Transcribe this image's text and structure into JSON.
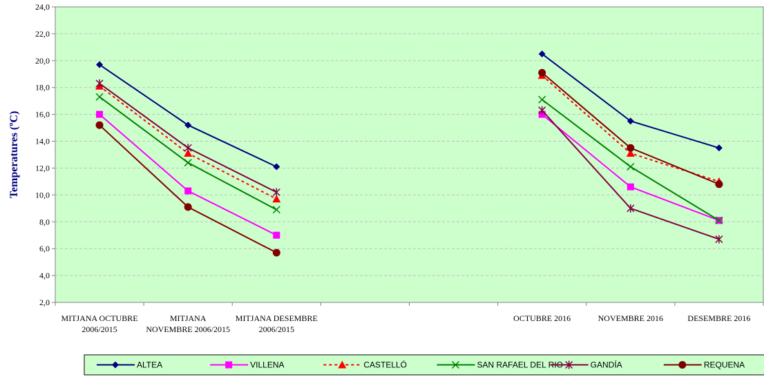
{
  "chart_data": {
    "type": "line",
    "ylabel": "Temperatures (ºC)",
    "ylim": [
      2,
      24
    ],
    "ytick_step": 2,
    "grid": true,
    "legend_position": "bottom",
    "categories": [
      [
        "MITJANA OCTUBRE",
        "2006/2015"
      ],
      [
        "MITJANA",
        "NOVEMBRE 2006/2015"
      ],
      [
        "MITJANA DESEMBRE",
        "2006/2015"
      ],
      [
        "",
        ""
      ],
      [
        "",
        ""
      ],
      [
        "OCTUBRE 2016",
        ""
      ],
      [
        "NOVEMBRE 2016",
        ""
      ],
      [
        "DESEMBRE 2016",
        ""
      ]
    ],
    "series": [
      {
        "name": "ALTEA",
        "color": "#000080",
        "marker": "diamond",
        "dash": false,
        "values": [
          19.7,
          15.2,
          12.1,
          null,
          null,
          20.5,
          15.5,
          13.5
        ]
      },
      {
        "name": "VILLENA",
        "color": "#FF00FF",
        "marker": "square",
        "dash": false,
        "values": [
          16.0,
          10.3,
          7.0,
          null,
          null,
          16.0,
          10.6,
          8.1
        ]
      },
      {
        "name": "CASTELLÓ",
        "color": "#FF0000",
        "marker": "triangle",
        "dash": true,
        "values": [
          18.1,
          13.1,
          9.7,
          null,
          null,
          18.9,
          13.1,
          11.0
        ]
      },
      {
        "name": "SAN RAFAEL DEL RIO",
        "color": "#008000",
        "marker": "x",
        "dash": false,
        "values": [
          17.3,
          12.4,
          8.9,
          null,
          null,
          17.1,
          12.1,
          8.1
        ]
      },
      {
        "name": "GANDÍA",
        "color": "#800040",
        "marker": "star",
        "dash": false,
        "values": [
          18.3,
          13.5,
          10.2,
          null,
          null,
          16.3,
          9.0,
          6.7
        ]
      },
      {
        "name": "REQUENA",
        "color": "#800000",
        "marker": "circle",
        "dash": false,
        "values": [
          15.2,
          9.1,
          5.7,
          null,
          null,
          19.1,
          13.5,
          10.8
        ]
      }
    ],
    "colors": {
      "plot_background": "#CCFFCC",
      "axis_label": "#000080",
      "gridline": "#C0C0C0",
      "axis": "#808080"
    }
  }
}
